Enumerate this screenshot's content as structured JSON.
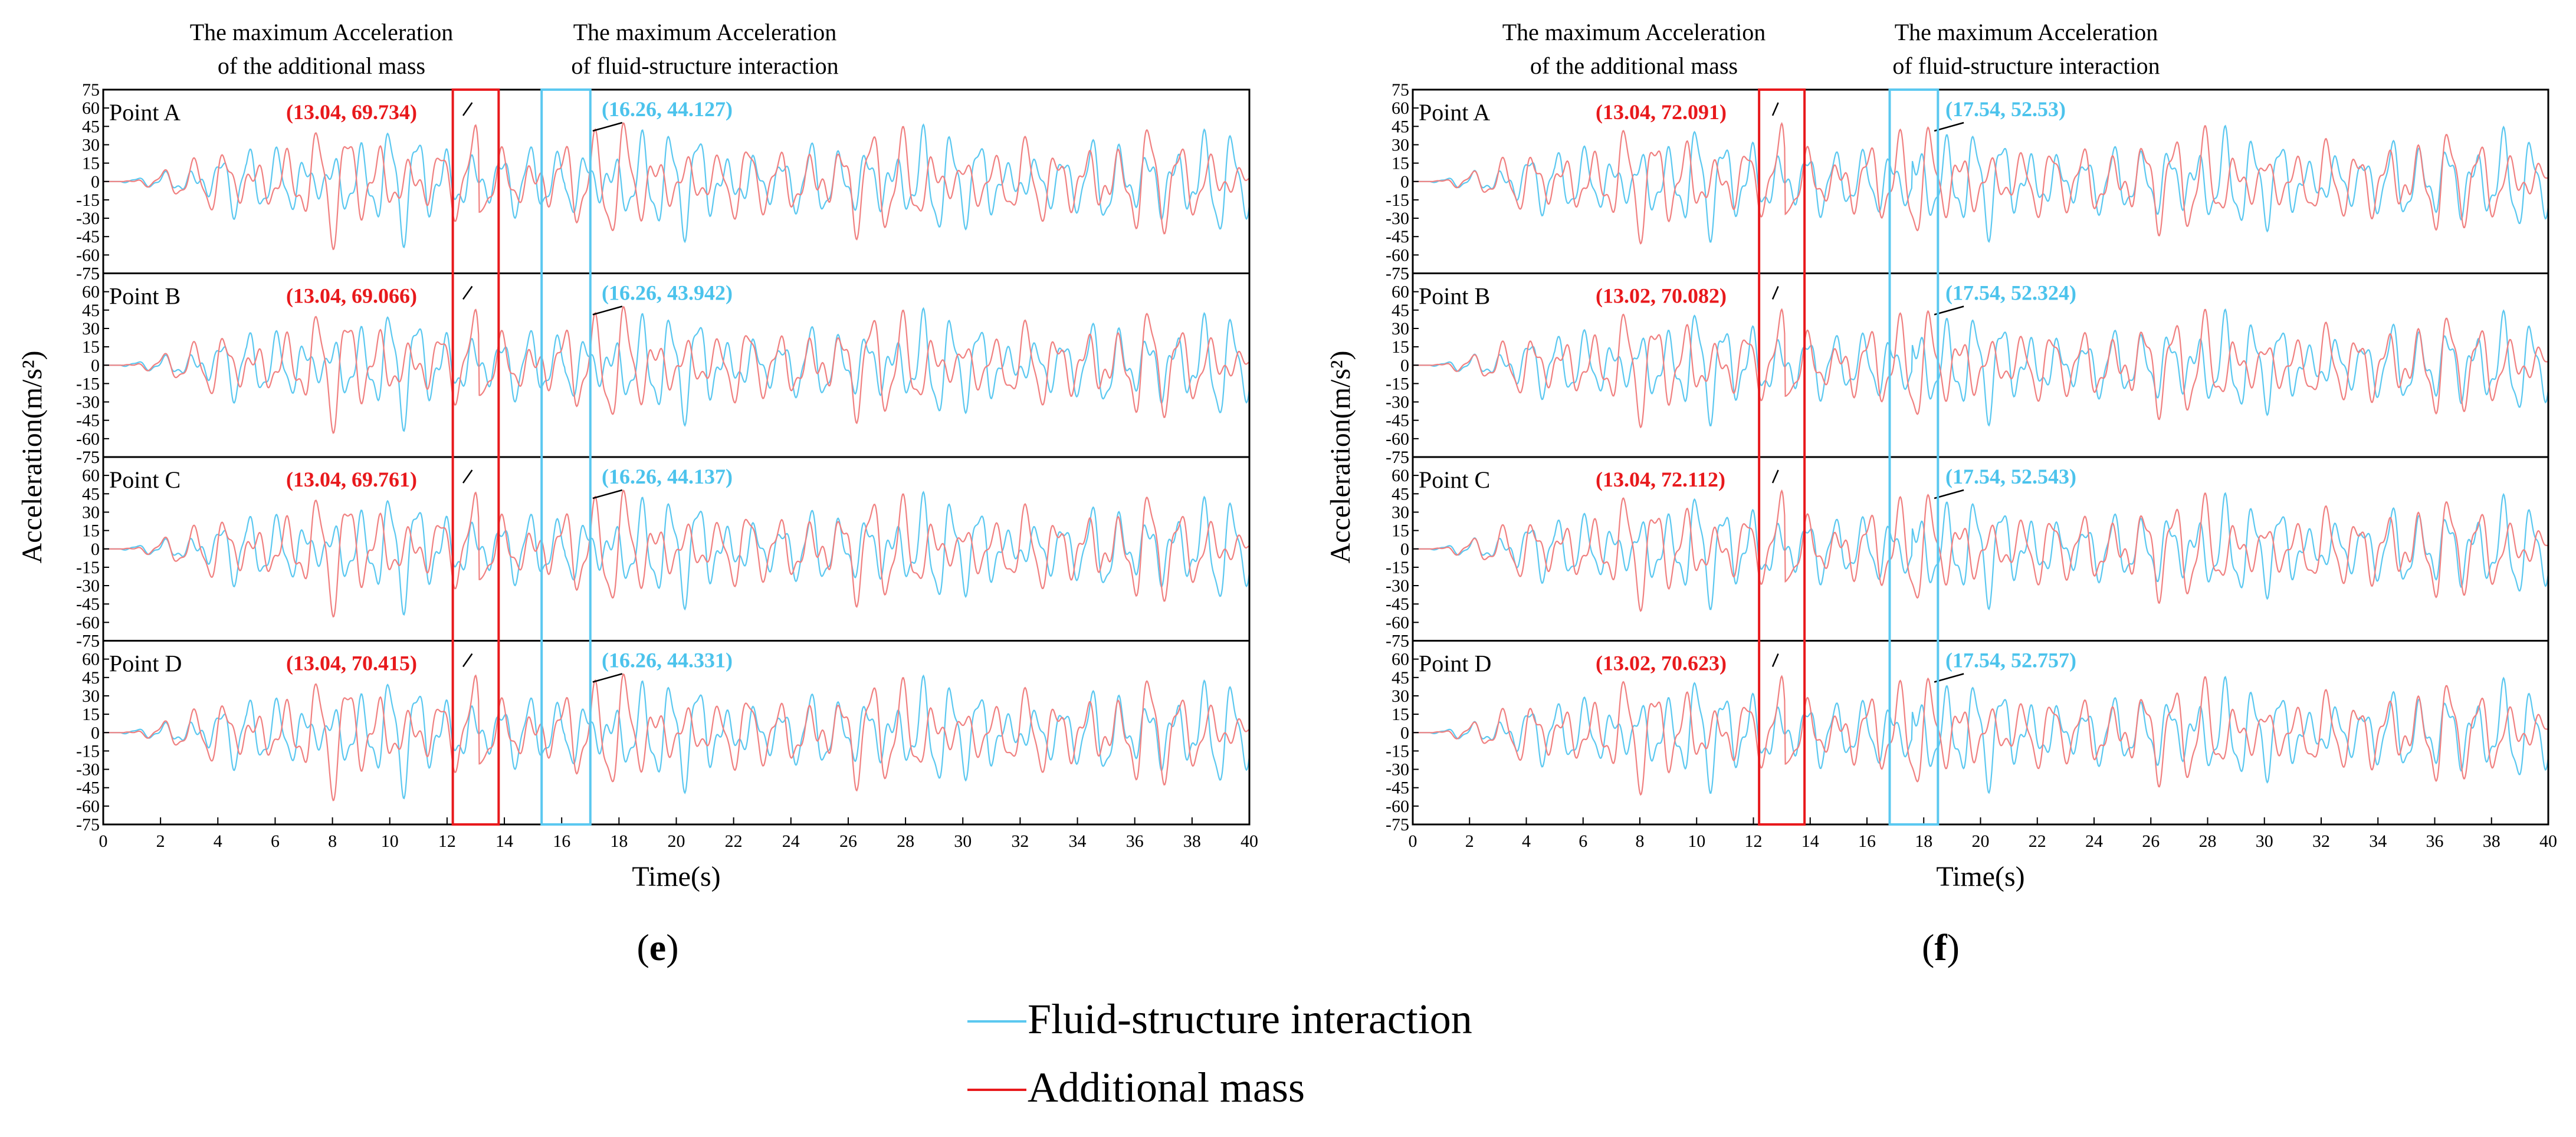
{
  "chart_data": [
    {
      "type": "line",
      "panel_label": "e",
      "title_annotations": {
        "additional_mass": [
          "The maximum Acceleration",
          "of the additional mass"
        ],
        "fsi": [
          "The maximum Acceleration",
          "of fluid-structure interaction"
        ]
      },
      "xlabel": "Time(s)",
      "ylabel": "Acceleration(m/s²)",
      "xlim": [
        0,
        40
      ],
      "ylim": [
        -75,
        75
      ],
      "xticks": [
        0,
        2,
        4,
        6,
        8,
        10,
        12,
        14,
        16,
        18,
        20,
        22,
        24,
        26,
        28,
        30,
        32,
        34,
        36,
        38,
        40
      ],
      "yticks": [
        75,
        60,
        45,
        30,
        15,
        0,
        -15,
        -30,
        -45,
        -60,
        -75
      ],
      "red_window": [
        12.2,
        13.8
      ],
      "blue_window": [
        15.3,
        17.0
      ],
      "subplots": [
        {
          "name": "Point A",
          "additional_mass_peak": "(13.04, 69.734)",
          "fsi_peak": "(16.26, 44.127)"
        },
        {
          "name": "Point B",
          "additional_mass_peak": "(13.04, 69.066)",
          "fsi_peak": "(16.26, 43.942)"
        },
        {
          "name": "Point C",
          "additional_mass_peak": "(13.04, 69.761)",
          "fsi_peak": "(16.26, 44.137)"
        },
        {
          "name": "Point D",
          "additional_mass_peak": "(13.04, 70.415)",
          "fsi_peak": "(16.26, 44.331)"
        }
      ],
      "series": [
        {
          "name": "Fluid-structure interaction",
          "color": "#5bc8f0"
        },
        {
          "name": "Additional mass",
          "color": "#f08080"
        }
      ]
    },
    {
      "type": "line",
      "panel_label": "f",
      "title_annotations": {
        "additional_mass": [
          "The maximum Acceleration",
          "of the additional mass"
        ],
        "fsi": [
          "The maximum Acceleration",
          "of fluid-structure interaction"
        ]
      },
      "xlabel": "Time(s)",
      "ylabel": "Acceleration(m/s²)",
      "xlim": [
        0,
        40
      ],
      "ylim": [
        -75,
        75
      ],
      "xticks": [
        0,
        2,
        4,
        6,
        8,
        10,
        12,
        14,
        16,
        18,
        20,
        22,
        24,
        26,
        28,
        30,
        32,
        34,
        36,
        38,
        40
      ],
      "yticks": [
        75,
        60,
        45,
        30,
        15,
        0,
        -15,
        -30,
        -45,
        -60,
        -75
      ],
      "red_window": [
        12.2,
        13.8
      ],
      "blue_window": [
        16.8,
        18.5
      ],
      "subplots": [
        {
          "name": "Point A",
          "additional_mass_peak": "(13.04, 72.091)",
          "fsi_peak": "(17.54, 52.53)"
        },
        {
          "name": "Point B",
          "additional_mass_peak": "(13.02, 70.082)",
          "fsi_peak": "(17.54, 52.324)"
        },
        {
          "name": "Point C",
          "additional_mass_peak": "(13.04, 72.112)",
          "fsi_peak": "(17.54, 52.543)"
        },
        {
          "name": "Point D",
          "additional_mass_peak": "(13.02, 70.623)",
          "fsi_peak": "(17.54, 52.757)"
        }
      ],
      "series": [
        {
          "name": "Fluid-structure interaction",
          "color": "#5bc8f0"
        },
        {
          "name": "Additional mass",
          "color": "#f08080"
        }
      ]
    }
  ],
  "legend": [
    {
      "label": "Fluid-structure interaction",
      "color": "#5bc8f0"
    },
    {
      "label": "Additional mass",
      "color": "#e8191c"
    }
  ],
  "colors": {
    "window_red": "#e8191c",
    "window_blue": "#5bc8f0",
    "annotation_red": "#e8191c",
    "annotation_blue": "#4cc3ec",
    "fsi_line": "#5bc8f0",
    "mass_line": "#f08080"
  }
}
